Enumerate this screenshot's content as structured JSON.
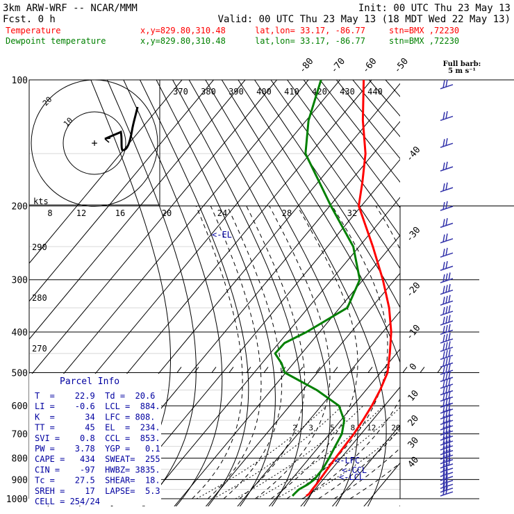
{
  "header": {
    "model": "3km ARW-WRF -- NCAR/MMM",
    "init": "Init: 00 UTC Thu 23 May 13",
    "fcst": "Fcst.     0 h",
    "valid": "Valid: 00 UTC Thu 23 May 13 (18 MDT Wed 22 May 13)"
  },
  "legend": [
    {
      "name": "Temperature",
      "coords": "x,y=829.80,310.48",
      "latlon": "lat,lon= 33.17, -86.77",
      "stn": "stn=BMX ,72230",
      "color": "#ff0000"
    },
    {
      "name": "Dewpoint temperature",
      "coords": "x,y=829.80,310.48",
      "latlon": "lat,lon= 33.17, -86.77",
      "stn": "stn=BMX ,72230",
      "color": "#008000"
    }
  ],
  "barb_title": [
    "Full barb:",
    "5 m s⁻¹"
  ],
  "parcel": {
    "title": "Parcel Info",
    "rows": [
      "T  =    22.9  Td =  20.6",
      "LI =    -0.6  LCL =  884.",
      "K  =      34  LFC = 808.",
      "TT =      45  EL  =  234.",
      "SVI =    0.8  CCL =  853.",
      "PW =    3.78  YGP =   0.1",
      "CAPE =   434  SWEAT=  255",
      "CIN =    -97  HWBZ= 3835.",
      "Tc =    27.5  SHEAR=  18.",
      "SREH =    17  LAPSE=  5.3",
      "CELL = 254/24"
    ]
  },
  "level_labels": {
    "el": "<-EL",
    "lfc": "<-LFC",
    "ccl": "<-CCL",
    "lcl": "<-LCL"
  },
  "hodograph": {
    "units": "kts",
    "ring_labels": [
      "10",
      "20"
    ]
  },
  "colors": {
    "temperature": "#ff0000",
    "dewpoint": "#008000",
    "barbs": "#3333aa",
    "axes": "#000000",
    "text_blue": "#0000a0",
    "parcel": "#000000"
  },
  "chart_data": {
    "type": "skew-T log-P",
    "y_axis": {
      "scale": "log",
      "unit": "hPa",
      "range": [
        1000,
        100
      ],
      "ticks": [
        100,
        200,
        300,
        400,
        500,
        600,
        700,
        800,
        900,
        1000
      ]
    },
    "isotherm_labels": [
      -80,
      -70,
      -60,
      -50,
      -40,
      -30,
      -20,
      -10,
      0,
      10,
      20,
      30,
      40
    ],
    "mixing_ratio_labels": [
      2,
      3,
      5,
      8,
      12,
      20
    ],
    "theta_e_labels_upper": [
      370,
      380,
      390,
      400,
      410,
      420,
      430,
      440
    ],
    "theta_e_labels_lower": [
      8,
      12,
      16,
      20,
      24,
      28,
      32
    ],
    "dry_adiabat_labels": [
      290,
      280,
      270
    ],
    "series": [
      {
        "name": "Temperature",
        "points": [
          [
            985,
            24.3
          ],
          [
            975,
            24.0
          ],
          [
            950,
            22.1
          ],
          [
            925,
            20.4
          ],
          [
            900,
            18.6
          ],
          [
            850,
            15.0
          ],
          [
            800,
            11.6
          ],
          [
            750,
            8.5
          ],
          [
            700,
            5.6
          ],
          [
            650,
            2.5
          ],
          [
            600,
            -0.6
          ],
          [
            550,
            -3.9
          ],
          [
            500,
            -7.5
          ],
          [
            450,
            -12.7
          ],
          [
            400,
            -18.2
          ],
          [
            350,
            -24.8
          ],
          [
            300,
            -32.7
          ],
          [
            250,
            -41.8
          ],
          [
            200,
            -52.2
          ],
          [
            175,
            -54.0
          ],
          [
            150,
            -56.0
          ],
          [
            125,
            -59.8
          ],
          [
            100,
            -62.5
          ]
        ]
      },
      {
        "name": "Dewpoint temperature",
        "points": [
          [
            985,
            20.0
          ],
          [
            975,
            19.3
          ],
          [
            950,
            17.9
          ],
          [
            925,
            17.7
          ],
          [
            900,
            16.8
          ],
          [
            850,
            13.5
          ],
          [
            800,
            9.6
          ],
          [
            750,
            5.6
          ],
          [
            700,
            1.8
          ],
          [
            650,
            -3.4
          ],
          [
            600,
            -11.0
          ],
          [
            550,
            -24.0
          ],
          [
            500,
            -40.0
          ],
          [
            475,
            -44.0
          ],
          [
            450,
            -49.0
          ],
          [
            425,
            -49.0
          ],
          [
            400,
            -45.0
          ],
          [
            350,
            -38.0
          ],
          [
            300,
            -40.0
          ],
          [
            250,
            -48.0
          ],
          [
            200,
            -61.0
          ],
          [
            150,
            -75.0
          ],
          [
            125,
            -77.0
          ],
          [
            100,
            -76.0
          ]
        ]
      }
    ]
  }
}
